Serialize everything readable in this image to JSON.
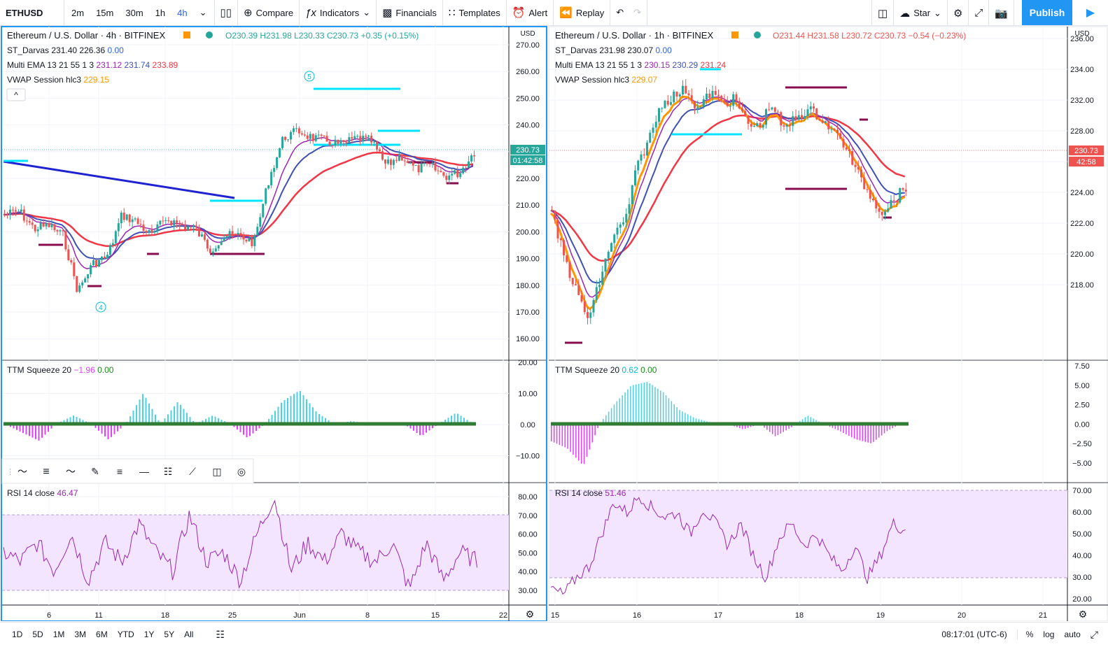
{
  "toolbar": {
    "symbol": "ETHUSD",
    "intervals": [
      "2m",
      "15m",
      "30m",
      "1h",
      "4h"
    ],
    "active_interval": "4h",
    "compare": "Compare",
    "indicators": "Indicators",
    "financials": "Financials",
    "templates": "Templates",
    "alert": "Alert",
    "replay": "Replay",
    "star": "Star",
    "publish": "Publish"
  },
  "bottom": {
    "ranges": [
      "1D",
      "5D",
      "1M",
      "3M",
      "6M",
      "YTD",
      "1Y",
      "5Y",
      "All"
    ],
    "time": "08:17:01 (UTC-6)",
    "percent": "%",
    "log": "log",
    "auto": "auto"
  },
  "colors": {
    "up": "#26a69a",
    "down": "#ef5350",
    "ema13": "#9c27b0",
    "ema21": "#3f51b5",
    "ema55": "#f23645",
    "vwap": "#ff9800",
    "darvas": "#00e5ff",
    "darvasLow": "#880e4f",
    "trend": "#1e22d0",
    "rsi": "#9c27b0",
    "rsiBand": "#f3e5ff"
  },
  "left": {
    "title": "Ethereum / U.S. Dollar · 4h · BITFINEX",
    "ohlc": {
      "o": "O230.39",
      "h": "H231.98",
      "l": "L230.33",
      "c": "C230.73",
      "chg": "+0.35 (+0.15%)"
    },
    "darvas": {
      "label": "ST_Darvas",
      "v1": "231.40",
      "v2": "226.36",
      "v3": "0.00"
    },
    "ema": {
      "label": "Multi EMA 13 21 55 1 3",
      "v1": "231.12",
      "v2": "231.74",
      "v3": "233.89"
    },
    "vwap": {
      "label": "VWAP Session hlc3",
      "v": "229.15"
    },
    "ttm": {
      "label": "TTM Squeeze 20",
      "v1": "−1.96",
      "v2": "0.00"
    },
    "rsi": {
      "label": "RSI 14 close",
      "v": "46.47"
    },
    "currency": "USD",
    "price_tag": "230.73",
    "countdown": "01:42:58",
    "price_ticks": [
      "270.00",
      "260.00",
      "250.00",
      "240.00",
      "230.00",
      "220.00",
      "210.00",
      "200.00",
      "190.00",
      "180.00",
      "170.00",
      "160.00"
    ],
    "ttm_ticks": [
      "20.00",
      "10.00",
      "0.00",
      "−10.00"
    ],
    "rsi_ticks": [
      "80.00",
      "70.00",
      "60.00",
      "50.00",
      "40.00",
      "30.00"
    ],
    "x_ticks": [
      "6",
      "11",
      "18",
      "25",
      "Jun",
      "8",
      "15",
      "22"
    ],
    "wave_labels": [
      "5",
      "4"
    ]
  },
  "right": {
    "title": "Ethereum / U.S. Dollar · 1h · BITFINEX",
    "ohlc": {
      "o": "O231.44",
      "h": "H231.58",
      "l": "L230.72",
      "c": "C230.73",
      "chg": "−0.54 (−0.23%)"
    },
    "darvas": {
      "label": "ST_Darvas",
      "v1": "231.98",
      "v2": "230.07",
      "v3": "0.00"
    },
    "ema": {
      "label": "Multi EMA 13 21 55 1 3",
      "v1": "230.15",
      "v2": "230.29",
      "v3": "231.24"
    },
    "vwap": {
      "label": "VWAP Session hlc3",
      "v": "229.07"
    },
    "ttm": {
      "label": "TTM Squeeze 20",
      "v1": "0.62",
      "v2": "0.00"
    },
    "rsi": {
      "label": "RSI 14 close",
      "v": "51.46"
    },
    "currency": "USD",
    "price_tag": "230.73",
    "countdown": "42:58",
    "price_ticks": [
      "236.00",
      "234.00",
      "232.00",
      "228.00",
      "226.00",
      "224.00",
      "222.00",
      "220.00",
      "218.00"
    ],
    "ttm_ticks": [
      "7.50",
      "5.00",
      "2.50",
      "0.00",
      "−2.50",
      "−5.00"
    ],
    "rsi_ticks": [
      "70.00",
      "60.00",
      "50.00",
      "40.00",
      "30.00",
      "20.00"
    ],
    "x_ticks": [
      "15",
      "16",
      "17",
      "18",
      "19",
      "20",
      "21"
    ]
  }
}
